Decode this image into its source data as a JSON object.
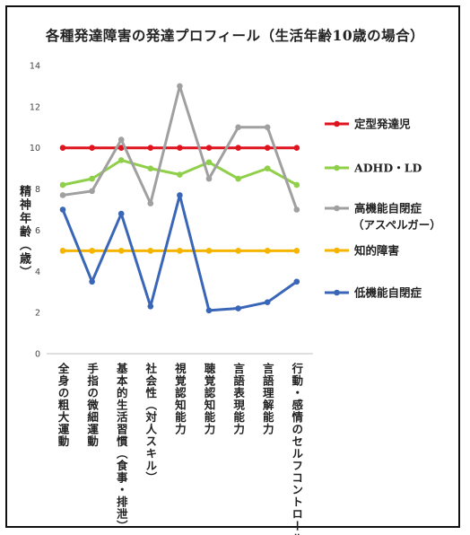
{
  "chart_data": {
    "type": "line",
    "title": "各種発達障害の発達プロフィール（生活年齢10歳の場合）",
    "ylabel": "精神年齢（歳）",
    "xlabel": "",
    "ylim": [
      0,
      14
    ],
    "yticks": [
      0,
      2,
      4,
      6,
      8,
      10,
      12,
      14
    ],
    "grid": false,
    "legend_position": "right",
    "categories": [
      "全身の粗大運動",
      "手指の微細運動",
      "基本的生活習慣（食事・排泄）",
      "社会性（対人スキル）",
      "視覚認知能力",
      "聴覚認知能力",
      "言語表現能力",
      "言語理解能力",
      "行動・感情のセルフコントロール"
    ],
    "series": [
      {
        "name": "定型発達児",
        "color": "#e0141e",
        "values": [
          10,
          10,
          10,
          10,
          10,
          10,
          10,
          10,
          10
        ]
      },
      {
        "name": "ADHD・LD",
        "color": "#8fcf4a",
        "values": [
          8.2,
          8.5,
          9.4,
          9.0,
          8.7,
          9.3,
          8.5,
          9.0,
          8.2
        ]
      },
      {
        "name": "高機能自閉症",
        "name_sub": "（アスペルガー）",
        "color": "#a0a0a0",
        "values": [
          7.7,
          7.9,
          10.4,
          7.3,
          13.0,
          8.5,
          11.0,
          11.0,
          7.0
        ]
      },
      {
        "name": "知的障害",
        "color": "#f4b400",
        "values": [
          5,
          5,
          5,
          5,
          5,
          5,
          5,
          5,
          5
        ]
      },
      {
        "name": "低機能自閉症",
        "color": "#3a66b8",
        "values": [
          7.0,
          3.5,
          6.8,
          2.3,
          7.7,
          2.1,
          2.2,
          2.5,
          3.5
        ]
      }
    ]
  }
}
